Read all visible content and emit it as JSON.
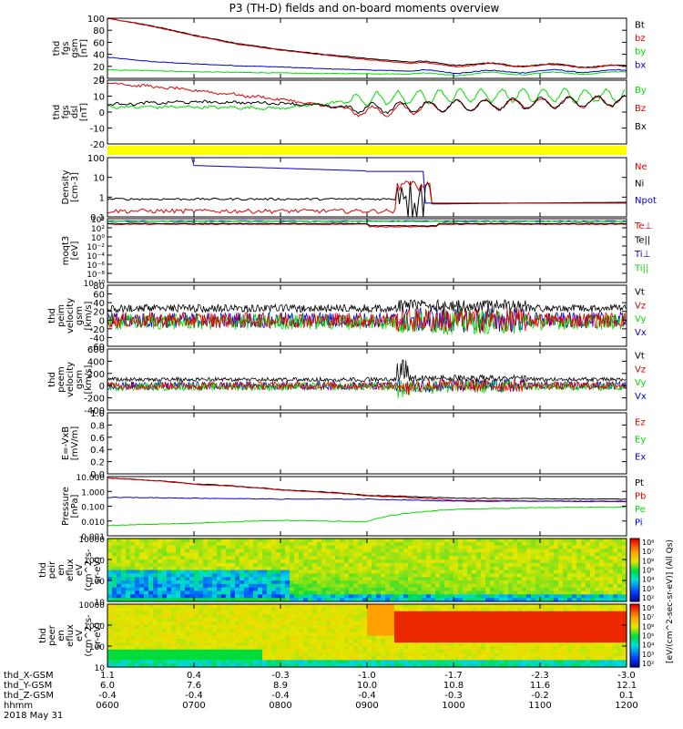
{
  "title": "P3 (TH-D) fields and on-board moments overview",
  "date_label": "2018 May 31",
  "colors": {
    "black": "#000000",
    "red": "#e00000",
    "green": "#00dd00",
    "blue": "#0000dd",
    "yellow": "#ffff00"
  },
  "chart_data": [
    {
      "type": "line",
      "id": "fgs_mag",
      "ylabel_lines": [
        "thd",
        "fgs",
        "gsm",
        "[nT]"
      ],
      "ylim": [
        0,
        100
      ],
      "yticks": [
        "100",
        "80",
        "60",
        "40",
        "20",
        "0"
      ],
      "series": [
        {
          "name": "Bt",
          "color": "#000000",
          "x": [
            "0600",
            "0630",
            "0700",
            "0730",
            "0800",
            "0830",
            "0900",
            "0930",
            "1000",
            "1030",
            "1100",
            "1130",
            "1200"
          ],
          "values": [
            100,
            88,
            72,
            58,
            48,
            40,
            33,
            27,
            24,
            23,
            22,
            21,
            20
          ]
        },
        {
          "name": "bz",
          "color": "#e00000",
          "x": [
            "0600",
            "0630",
            "0700",
            "0730",
            "0800",
            "0830",
            "0900",
            "0930",
            "1000",
            "1030",
            "1100",
            "1130",
            "1200"
          ],
          "values": [
            100,
            87,
            71,
            57,
            47,
            39,
            31,
            25,
            22,
            22,
            21,
            20,
            19
          ]
        },
        {
          "name": "by",
          "color": "#00dd00",
          "x": [
            "0600",
            "0630",
            "0700",
            "0730",
            "0800",
            "0830",
            "0900",
            "0930",
            "1000",
            "1030",
            "1100",
            "1130",
            "1200"
          ],
          "values": [
            14,
            13,
            11,
            10,
            9,
            8,
            8,
            7,
            7,
            8,
            8,
            9,
            9
          ]
        },
        {
          "name": "bx",
          "color": "#0000dd",
          "x": [
            "0600",
            "0630",
            "0700",
            "0730",
            "0800",
            "0830",
            "0900",
            "0930",
            "1000",
            "1030",
            "1100",
            "1130",
            "1200"
          ],
          "values": [
            35,
            28,
            24,
            21,
            19,
            16,
            14,
            12,
            11,
            11,
            12,
            12,
            12
          ]
        }
      ]
    },
    {
      "type": "line",
      "id": "fgs_dsl",
      "ylabel_lines": [
        "thd",
        "fgs",
        "dsl",
        "[nT]"
      ],
      "ylim": [
        -30,
        20
      ],
      "yticks": [
        "20",
        "10",
        "0",
        "-10",
        "-20"
      ],
      "series": [
        {
          "name": "By",
          "color": "#00dd00",
          "x": [
            "0600",
            "0700",
            "0800",
            "0900",
            "1000",
            "1100",
            "1200"
          ],
          "values": [
            -1,
            -1,
            -2,
            5,
            8,
            8,
            8
          ]
        },
        {
          "name": "Bz",
          "color": "#e00000",
          "x": [
            "0600",
            "0700",
            "0800",
            "0900",
            "1000",
            "1100",
            "1200"
          ],
          "values": [
            18,
            12,
            5,
            -5,
            0,
            2,
            4
          ]
        },
        {
          "name": "Bx",
          "color": "#000000",
          "x": [
            "0600",
            "0700",
            "0800",
            "0900",
            "1000",
            "1100",
            "1200"
          ],
          "values": [
            1,
            3,
            2,
            -2,
            0,
            2,
            4
          ]
        }
      ]
    },
    {
      "type": "line",
      "id": "density",
      "ylabel_lines": [
        "Density",
        "[cm-3]"
      ],
      "ylog": true,
      "yticks": [
        "100",
        "10",
        "1",
        "0.1"
      ],
      "series": [
        {
          "name": "Ne",
          "color": "#e00000"
        },
        {
          "name": "Ni",
          "color": "#000000"
        },
        {
          "name": "Npot",
          "color": "#0000dd"
        }
      ]
    },
    {
      "type": "line",
      "id": "temperature",
      "ylabel_lines": [
        "moqt3",
        "[eV]"
      ],
      "ylog": true,
      "yticks": [
        "10⁴",
        "10²",
        "10⁰",
        "10⁻²",
        "10⁻⁴",
        "10⁻⁶",
        "10⁻⁸",
        "10⁻¹⁰"
      ],
      "series": [
        {
          "name": "Te⊥",
          "color": "#e00000"
        },
        {
          "name": "Te||",
          "color": "#000000"
        },
        {
          "name": "Ti⊥",
          "color": "#0000dd"
        },
        {
          "name": "Ti||",
          "color": "#00dd00"
        }
      ]
    },
    {
      "type": "line",
      "id": "peim_vel",
      "ylabel_lines": [
        "thd",
        "peim",
        "velocity",
        "gsm",
        "[km/s]"
      ],
      "ylim": [
        -60,
        80
      ],
      "yticks": [
        "80",
        "60",
        "40",
        "20",
        "0",
        "-20",
        "-40",
        "-60"
      ],
      "series": [
        {
          "name": "Vt",
          "color": "#000000"
        },
        {
          "name": "Vz",
          "color": "#e00000"
        },
        {
          "name": "Vy",
          "color": "#00dd00"
        },
        {
          "name": "Vx",
          "color": "#0000dd"
        }
      ]
    },
    {
      "type": "line",
      "id": "peem_vel",
      "ylabel_lines": [
        "thd",
        "peem",
        "velocity",
        "gsm",
        "[km/s]"
      ],
      "ylim": [
        -400,
        600
      ],
      "yticks": [
        "600",
        "400",
        "200",
        "0",
        "-200",
        "-400"
      ],
      "series": [
        {
          "name": "Vt",
          "color": "#000000"
        },
        {
          "name": "Vz",
          "color": "#e00000"
        },
        {
          "name": "Vy",
          "color": "#00dd00"
        },
        {
          "name": "Vx",
          "color": "#0000dd"
        }
      ]
    },
    {
      "type": "line",
      "id": "efield",
      "ylabel_lines": [
        "E=-VxB",
        "[mV/m]"
      ],
      "ylim": [
        0,
        1
      ],
      "yticks": [
        "1.0",
        "0.8",
        "0.6",
        "0.4",
        "0.2",
        "0.0"
      ],
      "series": [
        {
          "name": "Ez",
          "color": "#e00000"
        },
        {
          "name": "Ey",
          "color": "#00dd00"
        },
        {
          "name": "Ex",
          "color": "#0000dd"
        }
      ]
    },
    {
      "type": "line",
      "id": "pressure",
      "ylabel_lines": [
        "Pressure",
        "[nPa]"
      ],
      "ylog": true,
      "yticks": [
        "10.000",
        "1.000",
        "0.100",
        "0.010",
        "0.001"
      ],
      "series": [
        {
          "name": "Pt",
          "color": "#000000",
          "x": [
            "0600",
            "0700",
            "0800",
            "0900",
            "1000",
            "1100",
            "1200"
          ],
          "values": [
            8,
            3.2,
            1.3,
            0.55,
            0.35,
            0.32,
            0.3
          ]
        },
        {
          "name": "Pb",
          "color": "#e00000",
          "x": [
            "0600",
            "0700",
            "0800",
            "0900",
            "1000",
            "1100",
            "1200"
          ],
          "values": [
            8,
            3.0,
            1.2,
            0.5,
            0.25,
            0.22,
            0.2
          ]
        },
        {
          "name": "Pe",
          "color": "#00dd00",
          "x": [
            "0600",
            "0700",
            "0800",
            "0900",
            "1000",
            "1100",
            "1200"
          ],
          "values": [
            0.005,
            0.007,
            0.011,
            0.009,
            0.06,
            0.08,
            0.09
          ]
        },
        {
          "name": "Pi",
          "color": "#0000dd",
          "x": [
            "0600",
            "0700",
            "0800",
            "0900",
            "1000",
            "1100",
            "1200"
          ],
          "values": [
            0.4,
            0.35,
            0.3,
            0.3,
            0.22,
            0.22,
            0.22
          ]
        }
      ]
    },
    {
      "type": "heatmap",
      "id": "peir",
      "ylabel_lines": [
        "thd",
        "peir",
        "en",
        "eflux",
        "eV",
        "(cm^2-s-",
        "sr-eV)"
      ],
      "ylog": true,
      "yticks": [
        "10000",
        "1000",
        "100",
        "10"
      ]
    },
    {
      "type": "heatmap",
      "id": "peer",
      "ylabel_lines": [
        "thd",
        "peer",
        "en",
        "eflux",
        "eV",
        "(cm^2-s-",
        "sr-eV)"
      ],
      "ylog": true,
      "yticks": [
        "10000",
        "1000",
        "100",
        "10"
      ]
    }
  ],
  "colorbar": {
    "ticks": [
      "10⁸",
      "10⁷",
      "10⁶",
      "10⁵",
      "10⁴",
      "10³",
      "10²"
    ],
    "label": "[eV/(cm^2-sec-sr-eV)] (All Qs)"
  },
  "xaxis": {
    "row_labels": [
      "thd_X-GSM",
      "thd_Y-GSM",
      "thd_Z-GSM",
      "hhmm"
    ],
    "columns": [
      [
        "1.1",
        "6.0",
        "-0.4",
        "0600"
      ],
      [
        "0.4",
        "7.6",
        "-0.4",
        "0700"
      ],
      [
        "-0.3",
        "8.9",
        "-0.4",
        "0800"
      ],
      [
        "-1.0",
        "10.0",
        "-0.4",
        "0900"
      ],
      [
        "-1.7",
        "10.8",
        "-0.3",
        "1000"
      ],
      [
        "-2.3",
        "11.6",
        "-0.2",
        "1100"
      ],
      [
        "-3.0",
        "12.1",
        "0.1",
        "1200"
      ]
    ]
  }
}
